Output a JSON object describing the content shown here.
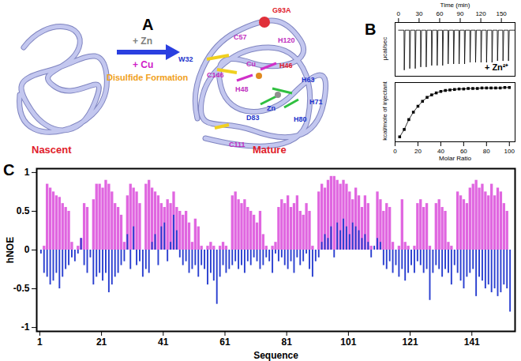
{
  "panel_labels": [
    "A",
    "B",
    "C"
  ],
  "diagram": {
    "states": [
      {
        "text": "Nascent",
        "color": "#e0202a"
      },
      {
        "text": "Mature",
        "color": "#e0202a"
      }
    ],
    "arrow_labels": [
      {
        "text": "+ Zn",
        "color": "#808080"
      },
      {
        "text": "+ Cu",
        "color": "#d020c8"
      },
      {
        "text": "Disulfide Formation",
        "color": "#f0a020"
      }
    ],
    "residues": [
      {
        "text": "G93A",
        "color": "#e0202a"
      },
      {
        "text": "C57",
        "color": "#c030c0"
      },
      {
        "text": "H120",
        "color": "#c030c0"
      },
      {
        "text": "W32",
        "color": "#2233cc"
      },
      {
        "text": "C146",
        "color": "#c030c0"
      },
      {
        "text": "H46",
        "color": "#e0202a"
      },
      {
        "text": "H48",
        "color": "#c030c0"
      },
      {
        "text": "H63",
        "color": "#2233cc"
      },
      {
        "text": "Cu",
        "color": "#c030c0"
      },
      {
        "text": "Zn",
        "color": "#2233cc"
      },
      {
        "text": "H71",
        "color": "#2233cc"
      },
      {
        "text": "D83",
        "color": "#2233cc"
      },
      {
        "text": "H80",
        "color": "#2233cc"
      },
      {
        "text": "C111",
        "color": "#c030c0"
      }
    ]
  },
  "chart_data": [
    {
      "type": "line",
      "title": "+ Zn²⁺",
      "x_label": "Time (min)",
      "y_label": "μcal/sec",
      "x": [
        0,
        8,
        8.4,
        9.5,
        16,
        16.4,
        17.5,
        24,
        24.4,
        25.5,
        32,
        32.4,
        33.5,
        40,
        40.4,
        41.5,
        48,
        48.4,
        49.5,
        56,
        56.4,
        57.5,
        64,
        64.4,
        65.5,
        72,
        72.4,
        73.5,
        80,
        80.4,
        81.5,
        88,
        88.4,
        89.5,
        96,
        96.4,
        97.5,
        104,
        104.4,
        105.5,
        112,
        112.4,
        113.5,
        120,
        120.4,
        121.5,
        128,
        128.4,
        129.5,
        136,
        136.4,
        137.5,
        144,
        144.4,
        145.5,
        152,
        152.4,
        153.5,
        160,
        160.4,
        161.5,
        170
      ],
      "values": [
        0,
        0,
        -2.6,
        0,
        0,
        -2.5,
        0,
        0,
        -2.5,
        0,
        0,
        -2.4,
        0,
        0,
        -2.4,
        0,
        0,
        -2.3,
        0,
        0,
        -2.3,
        0,
        0,
        -2.3,
        0,
        0,
        -2.2,
        0,
        0,
        -2.2,
        0,
        0,
        -2.2,
        0,
        0,
        -2.2,
        0,
        0,
        -2.1,
        0,
        0,
        -2.1,
        0,
        0,
        -2.1,
        0,
        0,
        -2.1,
        0,
        0,
        -2.1,
        0,
        0,
        -2.0,
        0,
        0,
        -2.0,
        0,
        0,
        -2.0,
        0,
        0
      ],
      "color": "#000000",
      "xlim": [
        -5,
        170
      ],
      "xticks": [
        0,
        30,
        60,
        90,
        120,
        150
      ],
      "ylim": [
        -3,
        0.5
      ],
      "tick_labels": "x"
    },
    {
      "type": "scatter",
      "x_label": "Molar Ratio",
      "y_label": "kcal/mole of injectant",
      "x": [
        4,
        8,
        12,
        16,
        20,
        24,
        28,
        32,
        36,
        40,
        44,
        48,
        52,
        56,
        60,
        64,
        68,
        72,
        76,
        80,
        84,
        88,
        92,
        96,
        100
      ],
      "values": [
        -1.0,
        -0.85,
        -0.65,
        -0.5,
        -0.38,
        -0.28,
        -0.2,
        -0.15,
        -0.11,
        -0.08,
        -0.06,
        -0.05,
        -0.04,
        -0.03,
        -0.03,
        -0.02,
        -0.02,
        -0.02,
        -0.01,
        -0.01,
        -0.01,
        -0.01,
        -0.01,
        0,
        0
      ],
      "color": "#000000",
      "marker": "square",
      "line_style": "solid",
      "xlim": [
        0,
        105
      ],
      "xticks": [
        0,
        20,
        40,
        60,
        80,
        100
      ],
      "ylim": [
        -1.1,
        0.1
      ],
      "tick_labels": "x"
    },
    {
      "type": "bar",
      "x_label": "Sequence",
      "y_label": "hNOE",
      "x": [
        1,
        2,
        3,
        4,
        5,
        6,
        7,
        8,
        9,
        10,
        11,
        12,
        13,
        14,
        15,
        16,
        17,
        18,
        19,
        20,
        21,
        22,
        23,
        24,
        25,
        26,
        27,
        28,
        29,
        30,
        31,
        32,
        33,
        34,
        35,
        36,
        37,
        38,
        39,
        40,
        41,
        42,
        43,
        44,
        45,
        46,
        47,
        48,
        49,
        50,
        51,
        52,
        53,
        54,
        55,
        56,
        57,
        58,
        59,
        60,
        61,
        62,
        63,
        64,
        65,
        66,
        67,
        68,
        69,
        70,
        71,
        72,
        73,
        74,
        75,
        76,
        77,
        78,
        79,
        80,
        81,
        82,
        83,
        84,
        85,
        86,
        87,
        88,
        89,
        90,
        91,
        92,
        93,
        94,
        95,
        96,
        97,
        98,
        99,
        100,
        101,
        102,
        103,
        104,
        105,
        106,
        107,
        108,
        109,
        110,
        111,
        112,
        113,
        114,
        115,
        116,
        117,
        118,
        119,
        120,
        121,
        122,
        123,
        124,
        125,
        126,
        127,
        128,
        129,
        130,
        131,
        132,
        133,
        134,
        135,
        136,
        137,
        138,
        139,
        140,
        141,
        142,
        143,
        144,
        145,
        146,
        147,
        148,
        149,
        150,
        151,
        152,
        153
      ],
      "series": [
        {
          "color": "#e066e0",
          "values": [
            null,
            0.05,
            0.85,
            0.8,
            0.75,
            0.7,
            0.68,
            0.6,
            0.55,
            0.5,
            0.1,
            null,
            0.05,
            0.15,
            0.6,
            0.55,
            null,
            0.65,
            0.85,
            0.85,
            0.8,
            0.9,
            0.85,
            0.75,
            0.6,
            0.55,
            0.45,
            0.1,
            0.7,
            0.85,
            0.8,
            0.75,
            0.6,
            null,
            0.85,
            0.9,
            0.8,
            0.75,
            0.7,
            0.6,
            0.55,
            0.65,
            0.6,
            0.75,
            0.55,
            0.5,
            0.45,
            0.5,
            0.35,
            0.1,
            0.4,
            0.3,
            0.05,
            null,
            0.05,
            0.1,
            0.05,
            null,
            0.05,
            0.1,
            0.05,
            null,
            0.7,
            0.75,
            0.65,
            0.6,
            0.65,
            0.55,
            0.5,
            0.45,
            0.35,
            0.5,
            0.2,
            0.05,
            null,
            0.05,
            0.1,
            0.55,
            0.65,
            0.6,
            0.7,
            0.55,
            0.6,
            0.7,
            0.5,
            0.45,
            0.6,
            0.5,
            0.05,
            null,
            0.75,
            0.85,
            0.8,
            0.9,
            0.95,
            0.95,
            0.9,
            0.85,
            0.9,
            0.85,
            0.75,
            0.65,
            0.8,
            0.7,
            0.55,
            0.7,
            0.6,
            0.05,
            null,
            0.75,
            0.65,
            0.5,
            0.6,
            0.55,
            0.1,
            null,
            0.05,
            0.65,
            0.1,
            0.05,
            null,
            0.05,
            0.6,
            0.65,
            0.55,
            0.6,
            0.05,
            null,
            0.6,
            0.65,
            0.55,
            0.5,
            0.1,
            0.05,
            null,
            0.75,
            0.7,
            0.65,
            0.6,
            0.8,
            0.85,
            0.9,
            0.8,
            0.85,
            0.75,
            0.7,
            0.85,
            0.7,
            0.8,
            0.75,
            0.6,
            0.5,
            null
          ]
        },
        {
          "color": "#2a3fd0",
          "values": [
            -0.05,
            -0.3,
            -0.35,
            -0.45,
            -0.4,
            -0.3,
            -0.5,
            -0.35,
            -0.25,
            -0.2,
            -0.1,
            -0.15,
            -0.05,
            0.15,
            -0.2,
            -0.3,
            -0.1,
            -0.45,
            -0.35,
            -0.3,
            -0.4,
            -0.3,
            -0.55,
            -0.45,
            -0.35,
            -0.3,
            -0.2,
            -0.15,
            0.2,
            -0.25,
            0.3,
            -0.2,
            -0.15,
            -0.35,
            -0.25,
            -0.3,
            0.1,
            0.2,
            -0.2,
            0.3,
            0.35,
            -0.15,
            0.1,
            0.45,
            0.25,
            -0.1,
            -0.2,
            -0.15,
            -0.3,
            -0.25,
            -0.2,
            -0.35,
            -0.2,
            -0.25,
            -0.45,
            -0.3,
            -0.4,
            -0.7,
            -0.35,
            -0.2,
            -0.3,
            -0.25,
            -0.2,
            -0.15,
            -0.25,
            -0.2,
            -0.3,
            -0.15,
            -0.2,
            -0.1,
            -0.15,
            -0.25,
            -0.2,
            -0.1,
            -0.15,
            -0.3,
            -0.05,
            -0.15,
            -0.1,
            -0.2,
            -0.25,
            -0.15,
            -0.3,
            -0.1,
            -0.2,
            -0.15,
            -0.05,
            -0.25,
            -0.35,
            -0.15,
            -0.1,
            0.1,
            0.2,
            0.15,
            0.3,
            -0.1,
            0.35,
            0.25,
            0.4,
            0.3,
            0.2,
            0.35,
            0.3,
            0.25,
            0.15,
            0.2,
            0.1,
            -0.1,
            0.05,
            0.15,
            0.1,
            -0.2,
            -0.25,
            -0.15,
            -0.3,
            -0.2,
            -0.35,
            -0.25,
            -0.4,
            -0.3,
            -0.2,
            -0.3,
            -0.15,
            -0.2,
            -0.3,
            -0.25,
            -0.65,
            -0.3,
            -0.2,
            -0.25,
            -0.35,
            -0.25,
            -0.3,
            -0.45,
            -0.2,
            -0.3,
            -0.4,
            -0.5,
            -0.35,
            -0.3,
            -0.25,
            -0.6,
            -0.35,
            -0.4,
            -0.5,
            -0.45,
            -0.55,
            -0.5,
            -0.6,
            -0.55,
            -0.45,
            -0.5,
            -0.8
          ]
        }
      ],
      "xlim": [
        0,
        155
      ],
      "xticks": [
        1,
        21,
        41,
        61,
        81,
        101,
        121,
        141
      ],
      "ylim": [
        -1.05,
        1.05
      ],
      "yticks": [
        -1,
        -0.5,
        0,
        0.5,
        1
      ]
    }
  ]
}
